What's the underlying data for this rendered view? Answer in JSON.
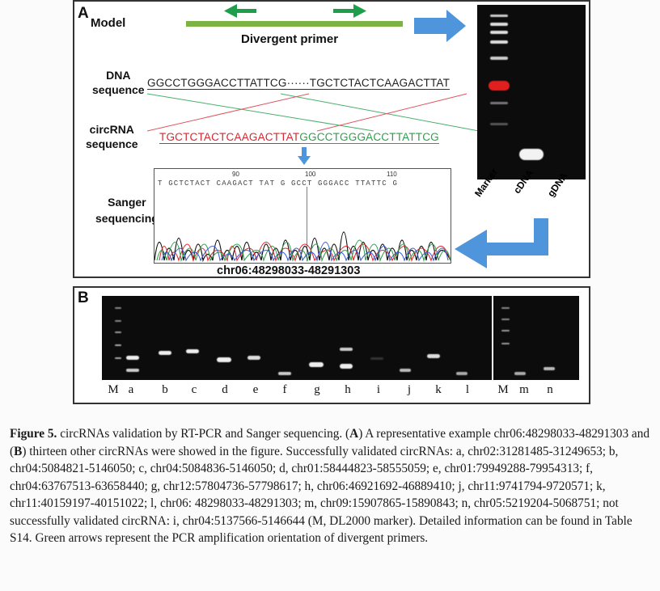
{
  "panelA": {
    "letter": "A",
    "model_label": "Model",
    "primer_label": "Divergent primer",
    "dna_label_1": "DNA",
    "dna_label_2": "sequence",
    "dna_seq_left": "GGCCTGGGACCTTATTCG",
    "dna_seq_dots": "······",
    "dna_seq_right": "TGCTCTACTCAAGACTTAT",
    "circ_label_1": "circRNA",
    "circ_label_2": "sequence",
    "circ_seq_red": "TGCTCTACTCAAGACTTAT",
    "circ_seq_green": "GGCCTGGGACCTTATTCG",
    "sanger_label_1": "Sanger",
    "sanger_label_2": "sequencing",
    "trace_bases": "T GCTCTACT CAAGACT TAT G GCCT GGGACC TTATTC G",
    "trace_ticks": [
      "90",
      "100",
      "110"
    ],
    "locus": "chr06:48298033-48291303",
    "gel_lanes": [
      "Marker",
      "cDNA",
      "gDNA"
    ]
  },
  "panelB": {
    "letter": "B",
    "lanes": [
      "M",
      "a",
      "b",
      "c",
      "d",
      "e",
      "f",
      "g",
      "h",
      "i",
      "j",
      "k",
      "l",
      "M",
      "m",
      "n"
    ]
  },
  "caption": {
    "figure_label": "Figure 5.",
    "title": "circRNAs validation by RT-PCR and Sanger sequencing.",
    "a_mark": "A",
    "b_mark": "B",
    "text_1": "A representative example chr06:48298033-48291303 and",
    "text_2": "thirteen other circRNAs were showed in the figure. Successfully validated circRNAs: a, chr02:31281485-31249653; b, chr04:5084821-5146050; c, chr04:5084836-5146050; d, chr01:58444823-58555059; e, chr01:79949288-79954313; f, chr04:63767513-63658440; g, chr12:57804736-57798617; h, chr06:46921692-46889410; j, chr11:9741794-9720571; k, chr11:40159197-40151022; l, chr06: 48298033-48291303; m, chr09:15907865-15890843; n, chr05:5219204-5068751; not successfully validated circRNA: i, chr04:5137566-5146644 (M, DL2000 marker). Detailed information can be found in Table S14. Green arrows represent the PCR amplification orientation of divergent primers.",
    "colors": {
      "red_seq": "#d9262e",
      "green_seq": "#2ea04a",
      "arrow_blue": "#4a8fd6",
      "primer_green": "#6ab04c"
    }
  }
}
